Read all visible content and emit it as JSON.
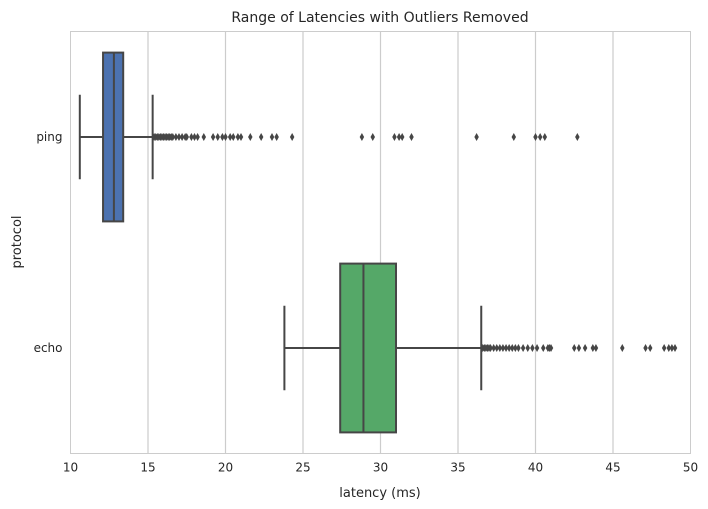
{
  "chart_data": {
    "type": "box",
    "orientation": "horizontal",
    "title": "Range of Latencies with Outliers Removed",
    "xlabel": "latency (ms)",
    "ylabel": "protocol",
    "xlim": [
      10,
      50
    ],
    "xticks": [
      10,
      15,
      20,
      25,
      30,
      35,
      40,
      45,
      50
    ],
    "grid": "vertical",
    "categories": [
      "ping",
      "echo"
    ],
    "boxes": [
      {
        "category": "ping",
        "color": "#4c72b0",
        "whisker_low": 10.6,
        "q1": 12.1,
        "median": 12.8,
        "q3": 13.4,
        "whisker_high": 15.3,
        "outliers": [
          15.4,
          15.5,
          15.6,
          15.7,
          15.8,
          15.9,
          16.0,
          16.1,
          16.2,
          16.3,
          16.4,
          16.5,
          16.6,
          16.8,
          17.0,
          17.2,
          17.4,
          17.5,
          17.8,
          18.0,
          18.2,
          18.6,
          19.2,
          19.5,
          19.8,
          20.0,
          20.3,
          20.5,
          20.8,
          21.0,
          21.6,
          22.3,
          23.0,
          23.3,
          24.3,
          28.8,
          29.5,
          30.9,
          31.2,
          31.4,
          32.0,
          36.2,
          38.6,
          40.0,
          40.3,
          40.6,
          42.7
        ]
      },
      {
        "category": "echo",
        "color": "#55a868",
        "whisker_low": 23.8,
        "q1": 27.4,
        "median": 28.9,
        "q3": 31.0,
        "whisker_high": 36.5,
        "outliers": [
          36.6,
          36.7,
          36.8,
          36.9,
          37.0,
          37.1,
          37.3,
          37.5,
          37.7,
          37.9,
          38.1,
          38.3,
          38.5,
          38.7,
          38.9,
          39.2,
          39.5,
          39.8,
          40.1,
          40.5,
          40.8,
          40.9,
          41.0,
          42.5,
          42.8,
          43.2,
          43.7,
          43.9,
          45.6,
          47.1,
          47.4,
          48.3,
          48.6,
          48.8,
          49.0
        ]
      }
    ]
  }
}
